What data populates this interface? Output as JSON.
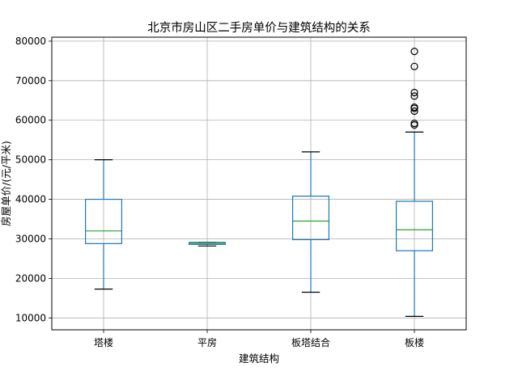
{
  "chart_data": {
    "type": "box",
    "title": "北京市房山区二手房单价与建筑结构的关系",
    "xlabel": "建筑结构",
    "ylabel": "房屋单价/(元/平米)",
    "ylim": [
      7000,
      81000
    ],
    "yticks": [
      10000,
      20000,
      30000,
      40000,
      50000,
      60000,
      70000,
      80000
    ],
    "grid": true,
    "colors": {
      "box": "#1f77b4",
      "median": "#2ca02c",
      "cap": "#000000",
      "grid": "#b0b0b0",
      "flier": "#000000"
    },
    "categories": [
      "塔楼",
      "平房",
      "板塔结合",
      "板楼"
    ],
    "boxes": [
      {
        "name": "塔楼",
        "whislo": 17300,
        "q1": 28800,
        "med": 32000,
        "q3": 40000,
        "whishi": 50000,
        "fliers": []
      },
      {
        "name": "平房",
        "whislo": 28200,
        "q1": 28600,
        "med": 28900,
        "q3": 29100,
        "whishi": 29100,
        "fliers": []
      },
      {
        "name": "板塔结合",
        "whislo": 16500,
        "q1": 29800,
        "med": 34500,
        "q3": 40800,
        "whishi": 52000,
        "fliers": []
      },
      {
        "name": "板楼",
        "whislo": 10400,
        "q1": 27000,
        "med": 32300,
        "q3": 39500,
        "whishi": 57000,
        "fliers": [
          58800,
          59200,
          62300,
          63000,
          63300,
          66100,
          67000,
          73600,
          77400
        ]
      }
    ]
  }
}
